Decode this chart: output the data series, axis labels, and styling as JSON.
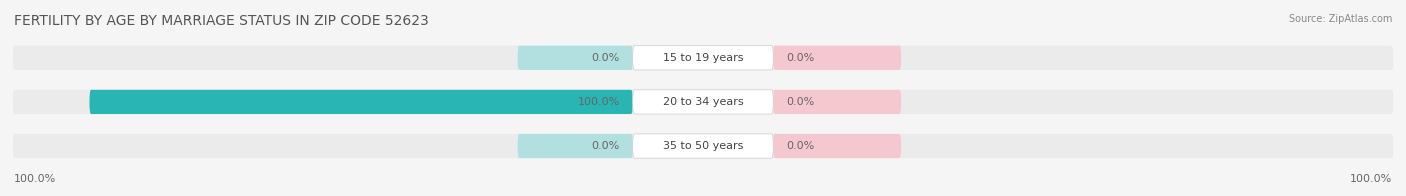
{
  "title": "FERTILITY BY AGE BY MARRIAGE STATUS IN ZIP CODE 52623",
  "source": "Source: ZipAtlas.com",
  "categories": [
    "15 to 19 years",
    "20 to 34 years",
    "35 to 50 years"
  ],
  "married_values": [
    0.0,
    100.0,
    0.0
  ],
  "unmarried_values": [
    0.0,
    0.0,
    0.0
  ],
  "married_color": "#2ab5b5",
  "married_bg_color": "#b2e0e0",
  "unmarried_color": "#f0a0b0",
  "unmarried_bg_color": "#f5c8d0",
  "bar_bg_color": "#ebebeb",
  "background_color": "#f5f5f5",
  "title_color": "#555555",
  "title_fontsize": 10,
  "source_fontsize": 7,
  "label_fontsize": 8,
  "legend_fontsize": 8,
  "max_value": 100.0,
  "left_label_100": "100.0%",
  "right_label_100": "100.0%"
}
